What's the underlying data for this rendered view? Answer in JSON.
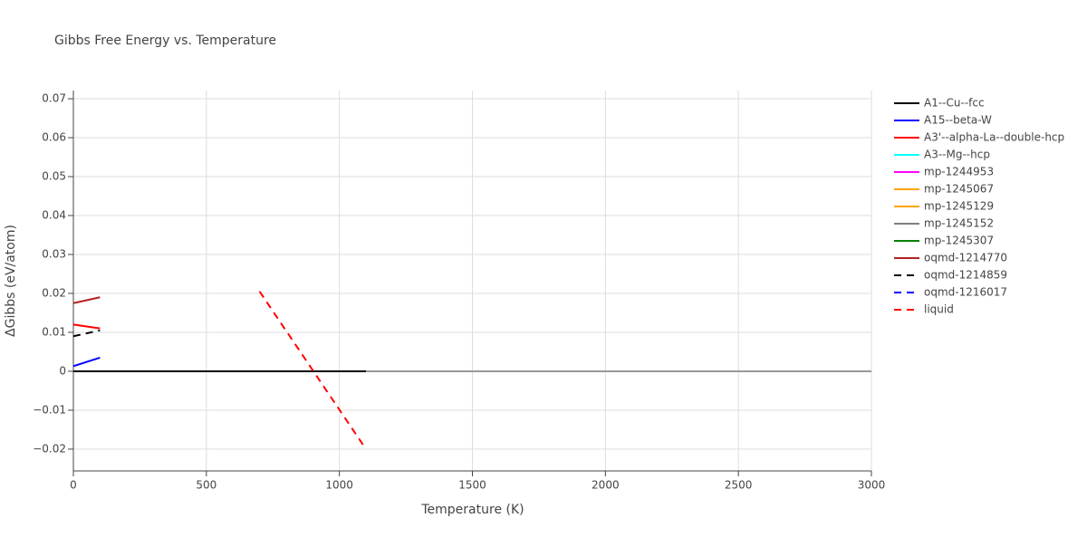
{
  "chart_data": {
    "type": "line",
    "title": "Gibbs Free Energy vs. Temperature",
    "x_label": "Temperature (K)",
    "y_label": "ΔGibbs (eV/atom)",
    "xlim": [
      0,
      3000
    ],
    "xticks": [
      0,
      500,
      1000,
      1500,
      2000,
      2500,
      3000
    ],
    "ylim": [
      -0.0256,
      0.0721
    ],
    "yticks": [
      {
        "value": -0.02,
        "label": "−0.02"
      },
      {
        "value": -0.01,
        "label": "−0.01"
      },
      0,
      0.01,
      0.02,
      0.03,
      0.04,
      0.05,
      0.06,
      0.07
    ],
    "grid": true,
    "legend": "right",
    "series": [
      {
        "name": "A1--Cu--fcc",
        "color": "#000000",
        "dash": false,
        "x": [
          0,
          1100
        ],
        "values": [
          0,
          0
        ]
      },
      {
        "name": "A15--beta-W",
        "color": "#0000ff",
        "dash": false,
        "x": [
          0,
          100
        ],
        "values": [
          0.0013,
          0.0035
        ]
      },
      {
        "name": "A3'--alpha-La--double-hcp",
        "color": "#ff0000",
        "dash": false,
        "x": [
          0,
          100
        ],
        "values": [
          0.012,
          0.011
        ]
      },
      {
        "name": "A3--Mg--hcp",
        "color": "#00ffff",
        "dash": false,
        "x": [],
        "values": []
      },
      {
        "name": "mp-1244953",
        "color": "#ff00ff",
        "dash": false,
        "x": [],
        "values": []
      },
      {
        "name": "mp-1245067",
        "color": "#ffa500",
        "dash": false,
        "x": [],
        "values": []
      },
      {
        "name": "mp-1245129",
        "color": "#ffa500",
        "dash": false,
        "x": [],
        "values": []
      },
      {
        "name": "mp-1245152",
        "color": "#808080",
        "dash": false,
        "x": [],
        "values": []
      },
      {
        "name": "mp-1245307",
        "color": "#008000",
        "dash": false,
        "x": [],
        "values": []
      },
      {
        "name": "oqmd-1214770",
        "color": "#b22222",
        "dash": false,
        "x": [
          0,
          100
        ],
        "values": [
          0.0175,
          0.019
        ]
      },
      {
        "name": "oqmd-1214859",
        "color": "#000000",
        "dash": true,
        "x": [
          0,
          100
        ],
        "values": [
          0.009,
          0.0105
        ]
      },
      {
        "name": "oqmd-1216017",
        "color": "#0000ff",
        "dash": true,
        "x": [],
        "values": []
      },
      {
        "name": "liquid",
        "color": "#ff0000",
        "dash": true,
        "x": [
          700,
          1100
        ],
        "values": [
          0.0205,
          -0.02
        ]
      }
    ]
  }
}
